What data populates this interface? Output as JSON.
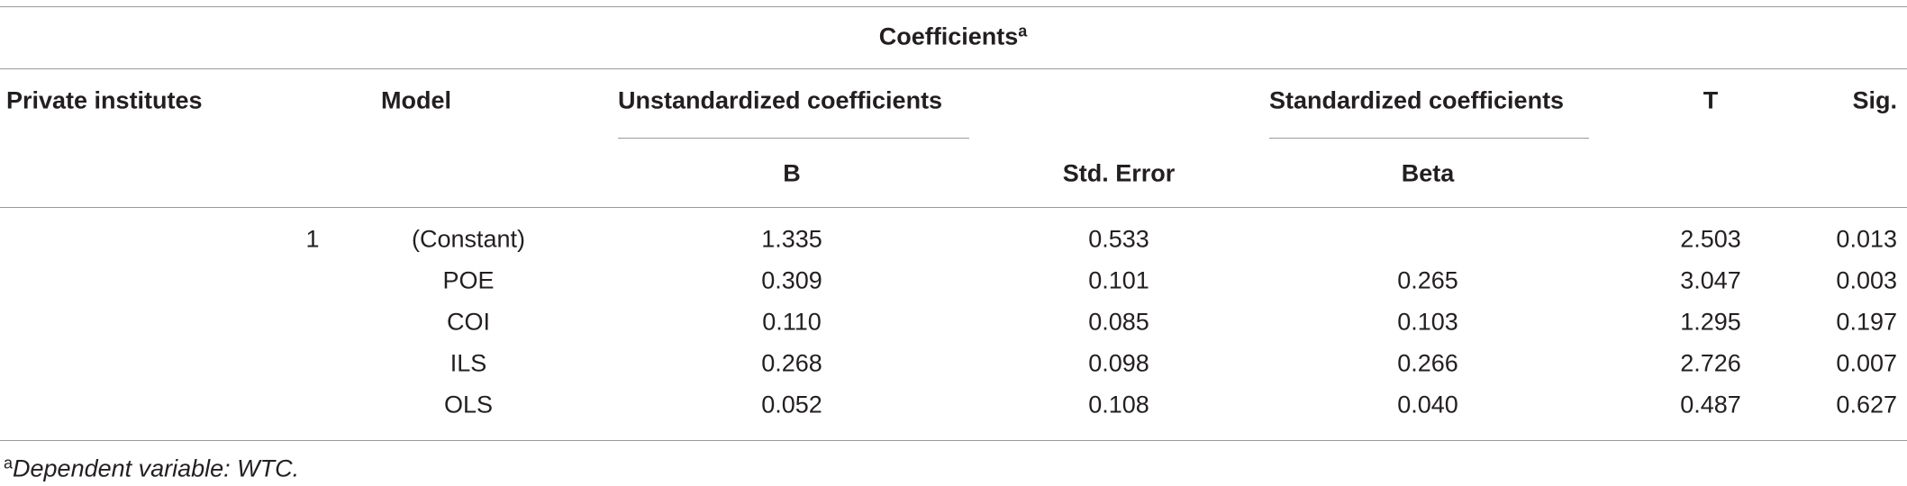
{
  "title": "Coefficients",
  "title_note": "a",
  "header": {
    "columns": [
      "Private institutes",
      "Model",
      "Unstandardized coefficients",
      "Standardized coefficients",
      "T",
      "Sig."
    ],
    "subcolumns": [
      "B",
      "Std. Error",
      "Beta"
    ]
  },
  "table": {
    "rows": [
      [
        "1",
        "(Constant)",
        "1.335",
        "0.533",
        null,
        "2.503",
        "0.013"
      ],
      [
        null,
        "POE",
        "0.309",
        "0.101",
        "0.265",
        "3.047",
        "0.003"
      ],
      [
        null,
        "COI",
        "0.110",
        "0.085",
        "0.103",
        "1.295",
        "0.197"
      ],
      [
        null,
        "ILS",
        "0.268",
        "0.098",
        "0.266",
        "2.726",
        "0.007"
      ],
      [
        null,
        "OLS",
        "0.052",
        "0.108",
        "0.040",
        "0.487",
        "0.627"
      ]
    ]
  },
  "footnote": {
    "mark": "a",
    "text": "Dependent variable: WTC."
  }
}
